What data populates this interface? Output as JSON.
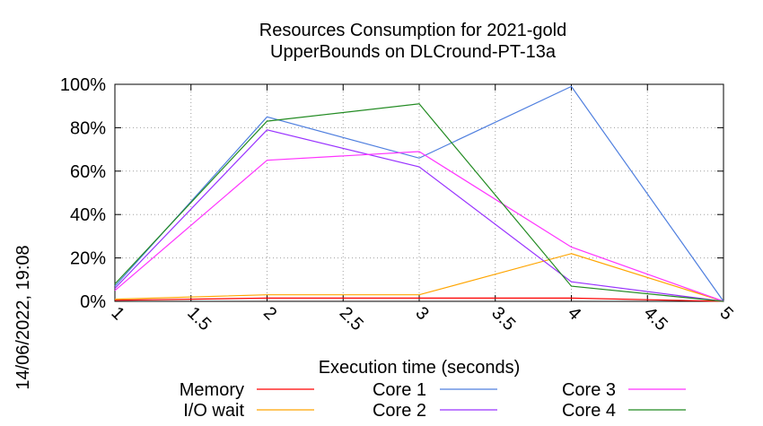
{
  "chart_data": {
    "type": "line",
    "title_line1": "Resources Consumption for 2021-gold",
    "title_line2": "UpperBounds on DLCround-PT-13a",
    "xlabel": "Execution time (seconds)",
    "ylabel": "",
    "side_label": "14/06/2022, 19:08",
    "x_ticks": [
      "1",
      "1.5",
      "2",
      "2.5",
      "3",
      "3.5",
      "4",
      "4.5",
      "5"
    ],
    "y_ticks": [
      "0%",
      "20%",
      "40%",
      "60%",
      "80%",
      "100%"
    ],
    "xlim": [
      1,
      5
    ],
    "ylim": [
      0,
      100
    ],
    "grid": true,
    "legend_position": "bottom",
    "x": [
      1,
      2,
      3,
      4,
      5
    ],
    "series": [
      {
        "name": "Memory",
        "color": "#ff0000",
        "values": [
          0.5,
          1.5,
          1.5,
          1.5,
          0
        ]
      },
      {
        "name": "I/O wait",
        "color": "#ffa500",
        "values": [
          1,
          3,
          3,
          22,
          0
        ]
      },
      {
        "name": "Core 1",
        "color": "#4f7fdf",
        "values": [
          7,
          85,
          66,
          99,
          0
        ]
      },
      {
        "name": "Core 2",
        "color": "#9933ff",
        "values": [
          6,
          79,
          62,
          9,
          0
        ]
      },
      {
        "name": "Core 3",
        "color": "#ff33ff",
        "values": [
          5,
          65,
          69,
          25,
          0
        ]
      },
      {
        "name": "Core 4",
        "color": "#228b22",
        "values": [
          8,
          83,
          91,
          7,
          0
        ]
      }
    ]
  }
}
